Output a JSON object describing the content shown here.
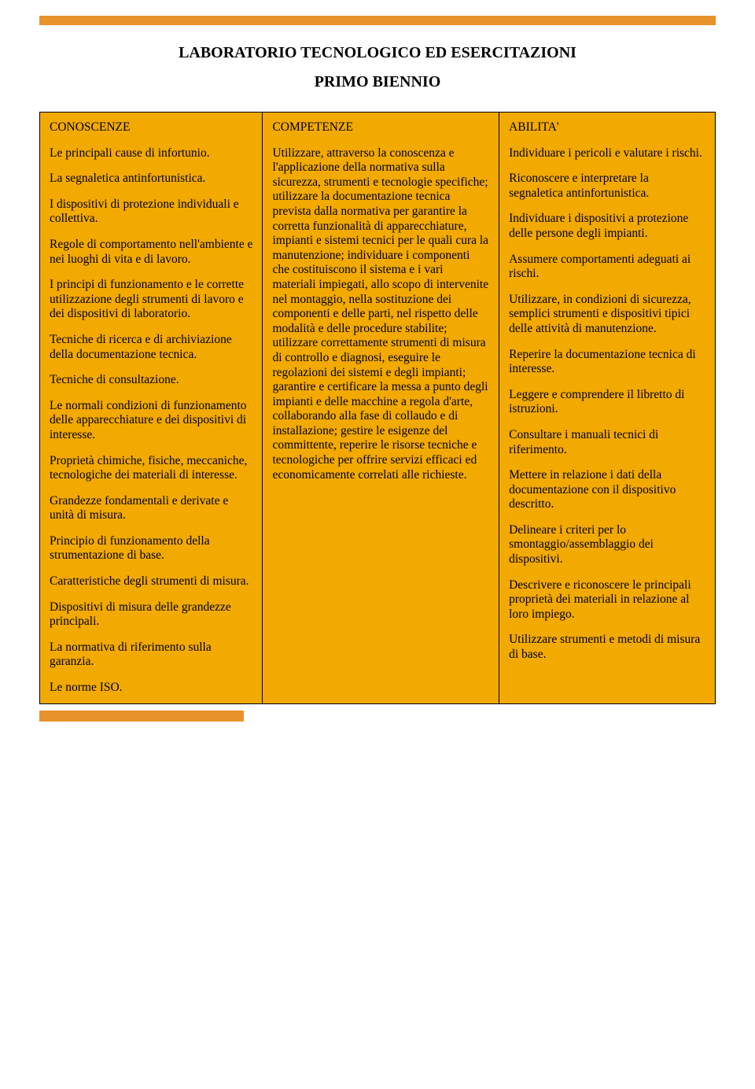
{
  "colors": {
    "page_bg": "#ffffff",
    "cell_bg": "#f2a900",
    "header_bar": "#e8922b",
    "footer_bar": "#e8922b",
    "border": "#000000",
    "text": "#000000"
  },
  "title": {
    "main": "LABORATORIO TECNOLOGICO ED ESERCITAZIONI",
    "sub": "PRIMO BIENNIO"
  },
  "columns": {
    "left": {
      "header": "CONOSCENZE",
      "paragraphs": [
        "Le principali cause di infortunio.",
        "La segnaletica antinfortunistica.",
        "I dispositivi di protezione individuali e collettiva.",
        "Regole di comportamento nell'ambiente e nei luoghi di vita e di lavoro.",
        "I principi di funzionamento e le corrette utilizzazione degli strumenti di lavoro e dei dispositivi di laboratorio.",
        "Tecniche di ricerca e di archiviazione della documentazione tecnica.",
        "Tecniche di consultazione.",
        "Le normali condizioni di funzionamento delle apparecchiature e dei dispositivi di interesse.",
        "Proprietà chimiche, fisiche, meccaniche, tecnologiche dei materiali di interesse.",
        "Grandezze fondamentali e derivate e unità di misura.",
        "Principio di funzionamento della strumentazione di base.",
        "Caratteristiche degli strumenti di misura.",
        "Dispositivi di misura delle grandezze principali.",
        "La normativa di riferimento sulla garanzia.",
        "Le norme ISO."
      ]
    },
    "middle": {
      "header": "COMPETENZE",
      "paragraphs": [
        "Utilizzare, attraverso la conoscenza e l'applicazione della normativa sulla sicurezza, strumenti e tecnologie specifiche; utilizzare la documentazione tecnica prevista dalla normativa per garantire la corretta funzionalità di apparecchiature, impianti e sistemi tecnici per le quali cura la manutenzione; individuare i componenti che costituiscono il sistema e i vari materiali impiegati, allo scopo di intervenite nel montaggio, nella sostituzione dei componenti e delle parti, nel rispetto delle modalità e delle procedure stabilite; utilizzare correttamente strumenti di misura di controllo e diagnosi, eseguire le regolazioni dei sistemi e degli impianti; garantire e certificare la messa a punto degli impianti e delle macchine a regola d'arte, collaborando alla fase di collaudo e di installazione; gestire le esigenze del committente, reperire le risorse tecniche e tecnologiche per offrire servizi efficaci ed economicamente correlati alle richieste."
      ]
    },
    "right": {
      "header": "ABILITA'",
      "paragraphs": [
        "Individuare i pericoli e valutare i rischi.",
        "Riconoscere e interpretare la segnaletica antinfortunistica.",
        "Individuare i dispositivi a protezione delle persone degli impianti.",
        "Assumere comportamenti adeguati ai rischi.",
        "Utilizzare, in condizioni di sicurezza, semplici strumenti e dispositivi tipici delle attività di manutenzione.",
        "Reperire la documentazione tecnica di interesse.",
        "Leggere e comprendere il libretto di istruzioni.",
        "Consultare i manuali tecnici di riferimento.",
        "Mettere in relazione i dati della documentazione con il dispositivo descritto.",
        "Delineare i criteri per lo smontaggio/assemblaggio dei dispositivi.",
        "Descrivere e riconoscere le principali proprietà dei materiali in relazione al loro impiego.",
        "Utilizzare strumenti e metodi di misura di base."
      ]
    }
  }
}
